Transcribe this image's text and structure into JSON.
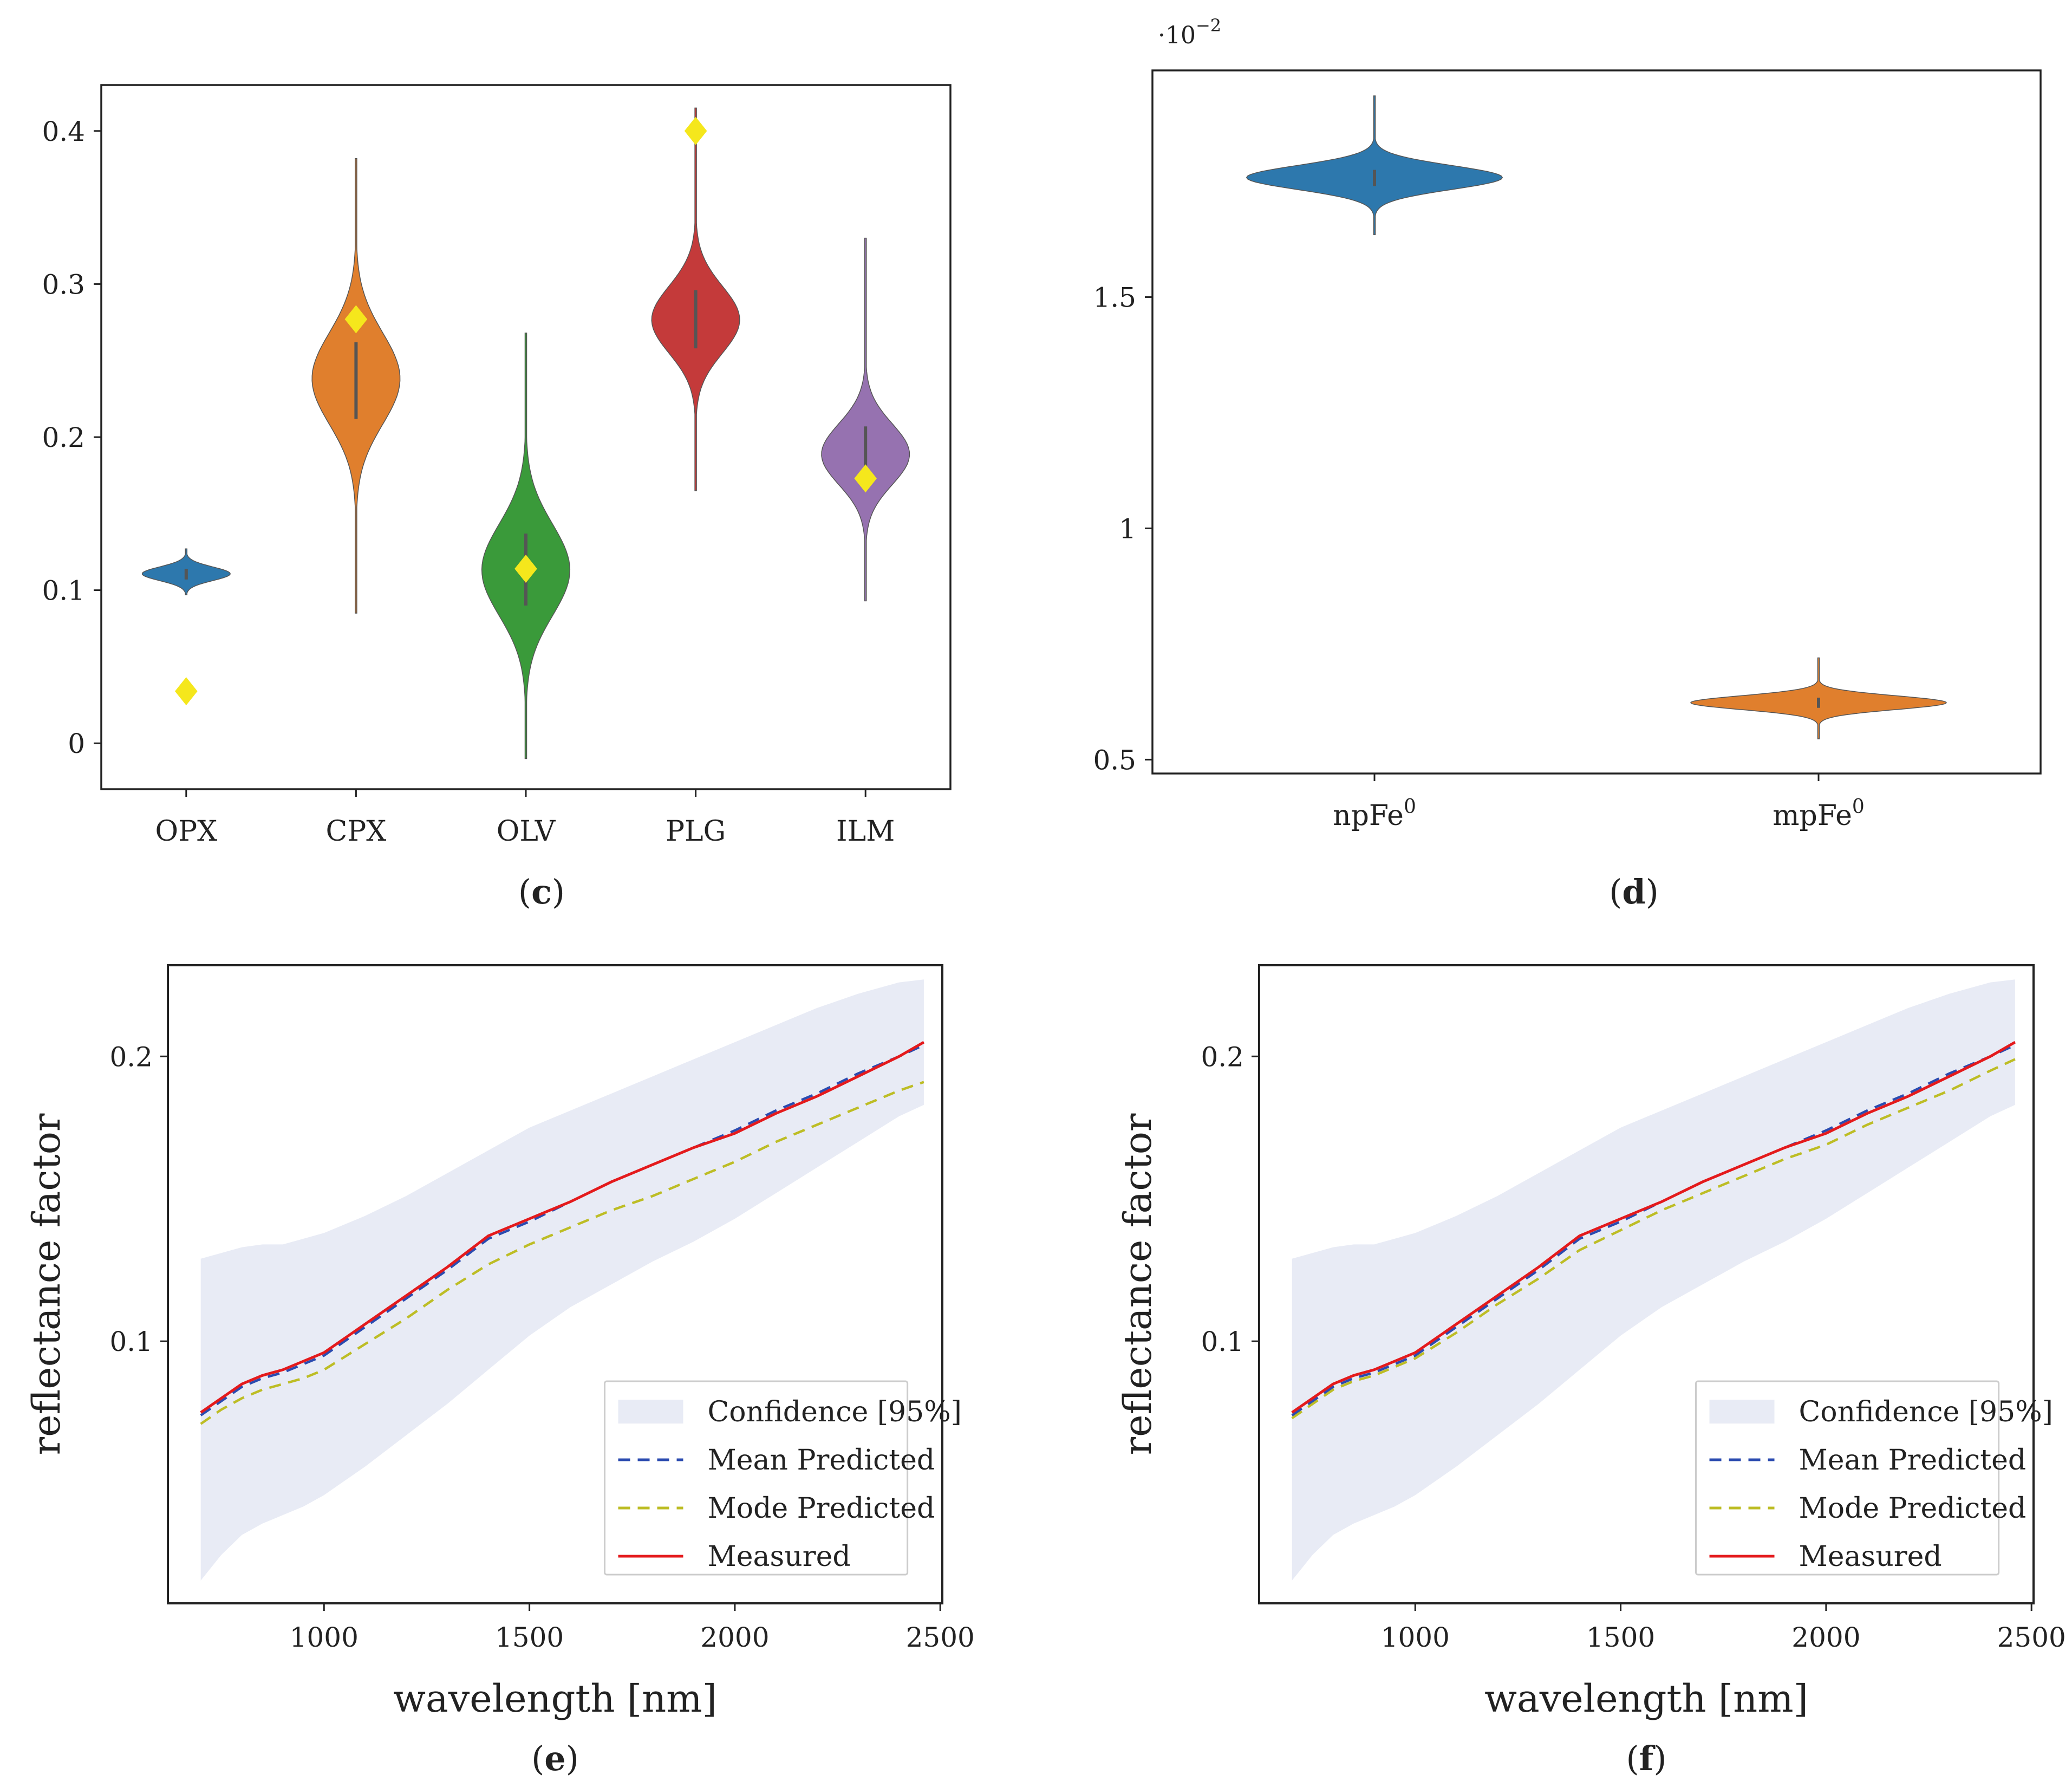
{
  "chart_data": [
    {
      "id": "c",
      "type": "violin",
      "panel_label": "c",
      "categories": [
        "OPX",
        "CPX",
        "OLV",
        "PLG",
        "ILM"
      ],
      "colors": [
        "#2d78ad",
        "#e07f2d",
        "#3a9a3a",
        "#c43a3a",
        "#9672b0"
      ],
      "yticks": [
        "0",
        "0.1",
        "0.2",
        "0.3",
        "0.4"
      ],
      "ylim": [
        -0.03,
        0.43
      ],
      "violins": [
        {
          "center": 0.111,
          "spread": 0.0045,
          "min": 0.097,
          "max": 0.127,
          "width": 0.45,
          "box": [
            0.107,
            0.114
          ]
        },
        {
          "center": 0.24,
          "spread": 0.03,
          "min": 0.085,
          "max": 0.382,
          "width": 0.45,
          "box": [
            0.212,
            0.262
          ]
        },
        {
          "center": 0.115,
          "spread": 0.03,
          "min": -0.01,
          "max": 0.268,
          "width": 0.45,
          "box": [
            0.09,
            0.137
          ]
        },
        {
          "center": 0.278,
          "spread": 0.022,
          "min": 0.165,
          "max": 0.415,
          "width": 0.45,
          "box": [
            0.258,
            0.296
          ]
        },
        {
          "center": 0.19,
          "spread": 0.02,
          "min": 0.093,
          "max": 0.33,
          "width": 0.45,
          "box": [
            0.172,
            0.207
          ]
        }
      ],
      "true_values": [
        0.034,
        0.277,
        0.114,
        0.4,
        0.173
      ],
      "true_marker_color": "#f5e71c"
    },
    {
      "id": "d",
      "type": "violin",
      "panel_label": "d",
      "categories": [
        "npFe",
        "mpFe"
      ],
      "category_superscripts": [
        "0",
        "0"
      ],
      "colors": [
        "#2d78ad",
        "#e07f2d"
      ],
      "yticks": [
        "0.5",
        "1",
        "1.5"
      ],
      "ylim": [
        0.47,
        1.99
      ],
      "exponent_base": "·10",
      "exponent_power": "−2",
      "violins": [
        {
          "center": 1.76,
          "spread": 0.026,
          "min": 1.635,
          "max": 1.935,
          "width": 0.5,
          "box": [
            1.74,
            1.775
          ]
        },
        {
          "center": 0.624,
          "spread": 0.015,
          "min": 0.545,
          "max": 0.72,
          "width": 0.5,
          "box": [
            0.612,
            0.634
          ]
        }
      ]
    },
    {
      "id": "e",
      "type": "line",
      "panel_label": "e",
      "xlabel": "wavelength [nm]",
      "ylabel": "reflectance factor",
      "xlim": [
        620,
        2505
      ],
      "ylim": [
        0.008,
        0.232
      ],
      "xticks": [
        "1000",
        "1500",
        "2000",
        "2500"
      ],
      "yticks": [
        "0.1",
        "0.2"
      ],
      "x": [
        700,
        750,
        800,
        850,
        900,
        950,
        1000,
        1100,
        1200,
        1300,
        1400,
        1500,
        1600,
        1700,
        1800,
        1900,
        2000,
        2100,
        2200,
        2300,
        2400,
        2460
      ],
      "series": [
        {
          "name": "Measured",
          "color": "#e41a1c",
          "style": "solid",
          "values": [
            0.075,
            0.08,
            0.085,
            0.088,
            0.09,
            0.093,
            0.096,
            0.106,
            0.116,
            0.126,
            0.137,
            0.143,
            0.149,
            0.156,
            0.162,
            0.168,
            0.173,
            0.18,
            0.186,
            0.193,
            0.2,
            0.205
          ]
        },
        {
          "name": "Mean Predicted",
          "color": "#2b4bb0",
          "style": "dashed",
          "values": [
            0.074,
            0.079,
            0.084,
            0.087,
            0.089,
            0.092,
            0.095,
            0.105,
            0.115,
            0.125,
            0.136,
            0.142,
            0.149,
            0.156,
            0.162,
            0.168,
            0.174,
            0.181,
            0.187,
            0.194,
            0.2,
            0.204
          ]
        },
        {
          "name": "Mode Predicted",
          "color": "#bdbd25",
          "style": "dashed",
          "values": [
            0.071,
            0.076,
            0.08,
            0.083,
            0.085,
            0.087,
            0.09,
            0.099,
            0.108,
            0.118,
            0.127,
            0.134,
            0.14,
            0.146,
            0.151,
            0.157,
            0.163,
            0.17,
            0.176,
            0.182,
            0.188,
            0.191
          ]
        }
      ],
      "confidence": {
        "name": "Confidence [95%]",
        "color": "#e8ebf5",
        "lower": [
          0.016,
          0.025,
          0.032,
          0.036,
          0.039,
          0.042,
          0.046,
          0.056,
          0.067,
          0.078,
          0.09,
          0.102,
          0.112,
          0.12,
          0.128,
          0.135,
          0.143,
          0.152,
          0.161,
          0.17,
          0.179,
          0.183
        ],
        "upper": [
          0.129,
          0.131,
          0.133,
          0.134,
          0.134,
          0.136,
          0.138,
          0.144,
          0.151,
          0.159,
          0.167,
          0.175,
          0.181,
          0.187,
          0.193,
          0.199,
          0.205,
          0.211,
          0.217,
          0.222,
          0.226,
          0.227
        ]
      },
      "legend_position": "lower-right",
      "legend_order": [
        "Confidence [95%]",
        "Mean Predicted",
        "Mode Predicted",
        "Measured"
      ]
    },
    {
      "id": "f",
      "type": "line",
      "panel_label": "f",
      "xlabel": "wavelength [nm]",
      "ylabel": "reflectance factor",
      "xlim": [
        620,
        2505
      ],
      "ylim": [
        0.008,
        0.232
      ],
      "xticks": [
        "1000",
        "1500",
        "2000",
        "2500"
      ],
      "yticks": [
        "0.1",
        "0.2"
      ],
      "x": [
        700,
        750,
        800,
        850,
        900,
        950,
        1000,
        1100,
        1200,
        1300,
        1400,
        1500,
        1600,
        1700,
        1800,
        1900,
        2000,
        2100,
        2200,
        2300,
        2400,
        2460
      ],
      "series": [
        {
          "name": "Measured",
          "color": "#e41a1c",
          "style": "solid",
          "values": [
            0.075,
            0.08,
            0.085,
            0.088,
            0.09,
            0.093,
            0.096,
            0.106,
            0.116,
            0.126,
            0.137,
            0.143,
            0.149,
            0.156,
            0.162,
            0.168,
            0.173,
            0.18,
            0.186,
            0.193,
            0.2,
            0.205
          ]
        },
        {
          "name": "Mean Predicted",
          "color": "#2b4bb0",
          "style": "dashed",
          "values": [
            0.074,
            0.079,
            0.084,
            0.087,
            0.089,
            0.092,
            0.095,
            0.105,
            0.115,
            0.125,
            0.136,
            0.142,
            0.149,
            0.156,
            0.162,
            0.168,
            0.174,
            0.181,
            0.187,
            0.194,
            0.2,
            0.204
          ]
        },
        {
          "name": "Mode Predicted",
          "color": "#bdbd25",
          "style": "dashed",
          "values": [
            0.073,
            0.078,
            0.083,
            0.086,
            0.088,
            0.091,
            0.094,
            0.103,
            0.113,
            0.122,
            0.132,
            0.139,
            0.146,
            0.152,
            0.158,
            0.164,
            0.169,
            0.176,
            0.182,
            0.188,
            0.195,
            0.199
          ]
        }
      ],
      "confidence": {
        "name": "Confidence [95%]",
        "color": "#e8ebf5",
        "lower": [
          0.016,
          0.025,
          0.032,
          0.036,
          0.039,
          0.042,
          0.046,
          0.056,
          0.067,
          0.078,
          0.09,
          0.102,
          0.112,
          0.12,
          0.128,
          0.135,
          0.143,
          0.152,
          0.161,
          0.17,
          0.179,
          0.183
        ],
        "upper": [
          0.129,
          0.131,
          0.133,
          0.134,
          0.134,
          0.136,
          0.138,
          0.144,
          0.151,
          0.159,
          0.167,
          0.175,
          0.181,
          0.187,
          0.193,
          0.199,
          0.205,
          0.211,
          0.217,
          0.222,
          0.226,
          0.227
        ]
      },
      "legend_position": "lower-right",
      "legend_order": [
        "Confidence [95%]",
        "Mean Predicted",
        "Mode Predicted",
        "Measured"
      ]
    }
  ]
}
